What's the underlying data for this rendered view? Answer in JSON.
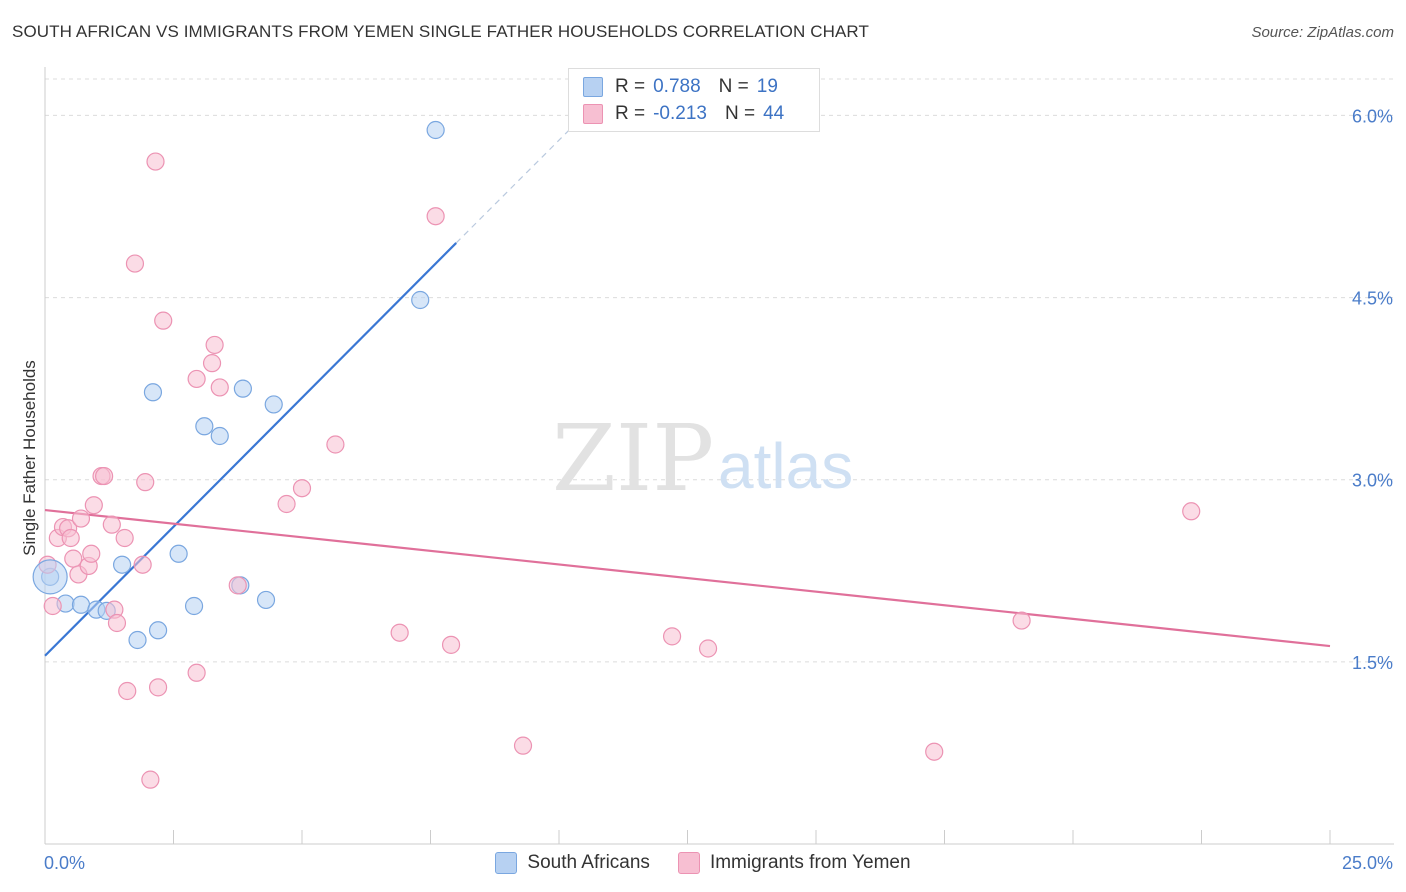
{
  "title": "SOUTH AFRICAN VS IMMIGRANTS FROM YEMEN SINGLE FATHER HOUSEHOLDS CORRELATION CHART",
  "source": "Source: ZipAtlas.com",
  "watermark": {
    "zip": "ZIP",
    "atlas": "atlas"
  },
  "colors": {
    "blue": "#3a77d4",
    "blue_fill": "#b7d1f2",
    "blue_stroke": "#7aa7e0",
    "pink": "#e0709a",
    "pink_fill": "#f7bfd2",
    "pink_stroke": "#ec93b3"
  },
  "legend": {
    "series1": {
      "r_label": "R =",
      "r_value": "0.788",
      "n_label": "N =",
      "n_value": "19"
    },
    "series2": {
      "r_label": "R =",
      "r_value": "-0.213",
      "n_label": "N =",
      "n_value": "44"
    }
  },
  "chart_data": {
    "type": "scatter",
    "title": "SOUTH AFRICAN VS IMMIGRANTS FROM YEMEN SINGLE FATHER HOUSEHOLDS CORRELATION CHART",
    "xlabel": "",
    "ylabel": "Single Father Households",
    "xlim": [
      0,
      25
    ],
    "ylim": [
      0,
      6.3
    ],
    "x_tick_labels": [
      "0.0%",
      "25.0%"
    ],
    "y_ticks": [
      1.5,
      3.0,
      4.5,
      6.0
    ],
    "y_tick_labels": [
      "1.5%",
      "3.0%",
      "4.5%",
      "6.0%"
    ],
    "grid": true,
    "legend_position": "top-center",
    "series": [
      {
        "name": "South Africans",
        "color": "#3a77d4",
        "r": 0.788,
        "n": 19,
        "points": [
          [
            0.1,
            2.2
          ],
          [
            0.4,
            1.98
          ],
          [
            0.7,
            1.97
          ],
          [
            1.0,
            1.93
          ],
          [
            1.2,
            1.92
          ],
          [
            1.5,
            2.3
          ],
          [
            1.8,
            1.68
          ],
          [
            2.1,
            3.72
          ],
          [
            2.2,
            1.76
          ],
          [
            2.6,
            2.39
          ],
          [
            2.9,
            1.96
          ],
          [
            3.1,
            3.44
          ],
          [
            3.4,
            3.36
          ],
          [
            3.8,
            2.13
          ],
          [
            3.85,
            3.75
          ],
          [
            4.3,
            2.01
          ],
          [
            4.45,
            3.62
          ],
          [
            7.3,
            4.48
          ],
          [
            7.6,
            5.88
          ]
        ],
        "trend": {
          "x": [
            0.0,
            8.0
          ],
          "y": [
            1.55,
            4.95
          ]
        },
        "trend_dashed": {
          "x": [
            8.0,
            10.6
          ],
          "y": [
            4.95,
            6.05
          ]
        }
      },
      {
        "name": "Immigrants from Yemen",
        "color": "#e0709a",
        "r": -0.213,
        "n": 44,
        "points": [
          [
            0.05,
            2.3
          ],
          [
            0.15,
            1.96
          ],
          [
            0.25,
            2.52
          ],
          [
            0.35,
            2.61
          ],
          [
            0.45,
            2.6
          ],
          [
            0.5,
            2.52
          ],
          [
            0.55,
            2.35
          ],
          [
            0.65,
            2.22
          ],
          [
            0.7,
            2.68
          ],
          [
            0.85,
            2.29
          ],
          [
            0.9,
            2.39
          ],
          [
            0.95,
            2.79
          ],
          [
            1.1,
            3.03
          ],
          [
            1.15,
            3.03
          ],
          [
            1.3,
            2.63
          ],
          [
            1.35,
            1.93
          ],
          [
            1.4,
            1.82
          ],
          [
            1.55,
            2.52
          ],
          [
            1.6,
            1.26
          ],
          [
            1.75,
            4.78
          ],
          [
            1.9,
            2.3
          ],
          [
            1.95,
            2.98
          ],
          [
            2.05,
            0.53
          ],
          [
            2.15,
            5.62
          ],
          [
            2.2,
            1.29
          ],
          [
            2.3,
            4.31
          ],
          [
            2.95,
            1.41
          ],
          [
            2.95,
            3.83
          ],
          [
            3.25,
            3.96
          ],
          [
            3.3,
            4.11
          ],
          [
            3.4,
            3.76
          ],
          [
            3.75,
            2.13
          ],
          [
            4.7,
            2.8
          ],
          [
            5.0,
            2.93
          ],
          [
            5.65,
            3.29
          ],
          [
            6.9,
            1.74
          ],
          [
            7.6,
            5.17
          ],
          [
            7.9,
            1.64
          ],
          [
            9.3,
            0.81
          ],
          [
            12.2,
            1.71
          ],
          [
            12.9,
            1.61
          ],
          [
            17.3,
            0.76
          ],
          [
            19.0,
            1.84
          ],
          [
            22.3,
            2.74
          ]
        ],
        "trend": {
          "x": [
            0.0,
            25.0
          ],
          "y": [
            2.75,
            1.63
          ]
        }
      }
    ]
  }
}
